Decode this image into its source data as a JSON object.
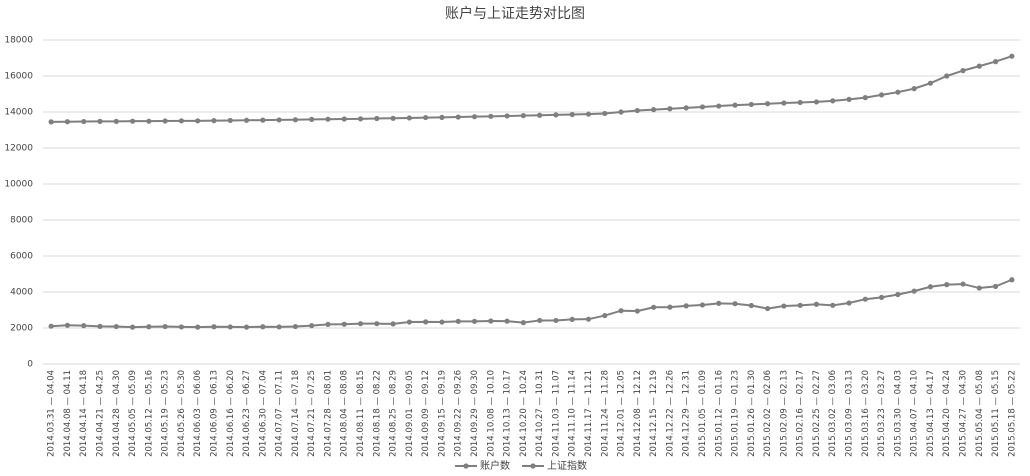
{
  "chart_data": {
    "type": "line",
    "title": "账户与上证走势对比图",
    "categories": [
      "2014.03.31 — 04.04",
      "2014.04.08 — 04.11",
      "2014.04.14 — 04.18",
      "2014.04.21 — 04.25",
      "2014.04.28 — 04.30",
      "2014.05.05 — 05.09",
      "2014.05.12 — 05.16",
      "2014.05.19 — 05.23",
      "2014.05.26 — 05.30",
      "2014.06.03 — 06.06",
      "2014.06.09 — 06.13",
      "2014.06.16 — 06.20",
      "2014.06.23 — 06.27",
      "2014.06.30 — 07.04",
      "2014.07.07 — 07.11",
      "2014.07.14 — 07.18",
      "2014.07.21 — 07.25",
      "2014.07.28 — 08.01",
      "2014.08.04 — 08.08",
      "2014.08.11 — 08.15",
      "2014.08.18 — 08.22",
      "2014.08.25 — 08.29",
      "2014.09.01 — 09.05",
      "2014.09.09 — 09.12",
      "2014.09.15 — 09.19",
      "2014.09.22 — 09.26",
      "2014.09.29 — 09.30",
      "2014.10.08 — 10.10",
      "2014.10.13 — 10.17",
      "2014.10.20 — 10.24",
      "2014.10.27 — 10.31",
      "2014.11.03 — 11.07",
      "2014.11.10 — 11.14",
      "2014.11.17 — 11.21",
      "2014.11.24 — 11.28",
      "2014.12.01 — 12.05",
      "2014.12.08 — 12.12",
      "2014.12.15 — 12.19",
      "2014.12.22 — 12.26",
      "2014.12.29 — 12.31",
      "2015.01.05 — 01.09",
      "2015.01.12 — 01.16",
      "2015.01.19 — 01.23",
      "2015.01.26 — 01.30",
      "2015.02.02 — 02.06",
      "2015.02.09 — 02.13",
      "2015.02.16 — 02.17",
      "2015.02.25 — 02.27",
      "2015.03.02 — 03.06",
      "2015.03.09 — 03.13",
      "2015.03.16 — 03.20",
      "2015.03.23 — 03.27",
      "2015.03.30 — 04.03",
      "2015.04.07 — 04.10",
      "2015.04.13 — 04.17",
      "2015.04.20 — 04.24",
      "2015.04.27 — 04.30",
      "2015.05.04 — 05.08",
      "2015.05.11 — 05.15",
      "2015.05.18 — 05.22"
    ],
    "series": [
      {
        "name": "账户数",
        "color": "#7f7f7f",
        "values": [
          13450,
          13460,
          13470,
          13480,
          13480,
          13490,
          13490,
          13500,
          13510,
          13510,
          13520,
          13530,
          13540,
          13550,
          13560,
          13570,
          13590,
          13600,
          13610,
          13620,
          13640,
          13650,
          13670,
          13690,
          13700,
          13720,
          13740,
          13760,
          13780,
          13800,
          13820,
          13840,
          13860,
          13880,
          13920,
          14000,
          14080,
          14130,
          14180,
          14230,
          14280,
          14330,
          14380,
          14420,
          14460,
          14500,
          14530,
          14560,
          14620,
          14700,
          14800,
          14950,
          15100,
          15300,
          15600,
          16000,
          16300,
          16550,
          16800,
          17100
        ]
      },
      {
        "name": "上证指数",
        "color": "#7f7f7f",
        "values": [
          2100,
          2150,
          2130,
          2090,
          2080,
          2050,
          2070,
          2080,
          2060,
          2050,
          2070,
          2060,
          2050,
          2070,
          2060,
          2080,
          2130,
          2200,
          2210,
          2240,
          2240,
          2230,
          2330,
          2340,
          2330,
          2370,
          2370,
          2390,
          2380,
          2300,
          2420,
          2420,
          2480,
          2490,
          2690,
          2960,
          2940,
          3150,
          3160,
          3230,
          3280,
          3370,
          3350,
          3250,
          3080,
          3220,
          3260,
          3320,
          3260,
          3390,
          3600,
          3700,
          3860,
          4050,
          4290,
          4410,
          4440,
          4220,
          4310,
          4680
        ]
      }
    ],
    "ylim": [
      0,
      18000
    ],
    "yticks": [
      0,
      2000,
      4000,
      6000,
      8000,
      10000,
      12000,
      14000,
      16000,
      18000
    ],
    "grid": true,
    "legend": "bottom"
  }
}
